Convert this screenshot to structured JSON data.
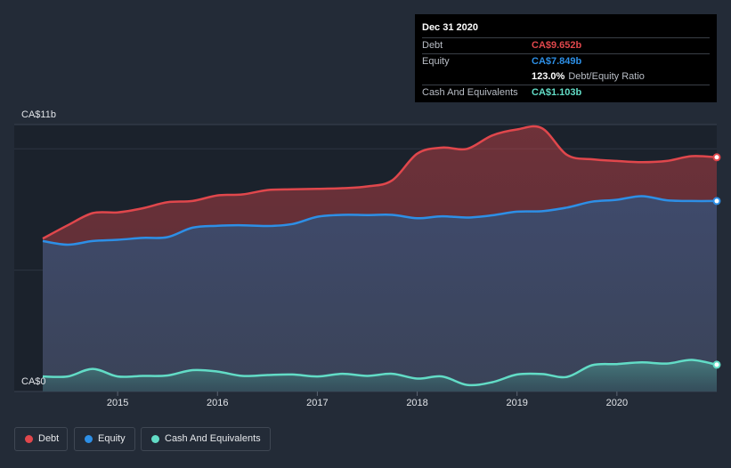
{
  "tooltip": {
    "date": "Dec 31 2020",
    "rows": [
      {
        "label": "Debt",
        "value": "CA$9.652b"
      },
      {
        "label": "Equity",
        "value": "CA$7.849b"
      },
      {
        "label": "",
        "value": "123.0%",
        "suffix": "Debt/Equity Ratio"
      },
      {
        "label": "Cash And Equivalents",
        "value": "CA$1.103b"
      }
    ]
  },
  "colors": {
    "debt": "#e0474c",
    "equity": "#2d8fe6",
    "cash": "#62dcc6",
    "background": "#232b37"
  },
  "legend": [
    {
      "label": "Debt",
      "color": "#e0474c"
    },
    {
      "label": "Equity",
      "color": "#2d8fe6"
    },
    {
      "label": "Cash And Equivalents",
      "color": "#62dcc6"
    }
  ],
  "chart_data": {
    "type": "area",
    "title": "",
    "xlabel": "",
    "ylabel": "",
    "y_top_label": "CA$11b",
    "y_bottom_label": "CA$0",
    "ylim": [
      0,
      11
    ],
    "xlim": [
      2014.25,
      2021.0
    ],
    "x_ticks": [
      2015,
      2016,
      2017,
      2018,
      2019,
      2020
    ],
    "x_tick_labels": [
      "2015",
      "2016",
      "2017",
      "2018",
      "2019",
      "2020"
    ],
    "series": [
      {
        "name": "Debt",
        "points": [
          [
            2014.25,
            6.3
          ],
          [
            2014.5,
            6.85
          ],
          [
            2014.75,
            7.35
          ],
          [
            2015.0,
            7.38
          ],
          [
            2015.25,
            7.55
          ],
          [
            2015.5,
            7.8
          ],
          [
            2015.75,
            7.85
          ],
          [
            2016.0,
            8.08
          ],
          [
            2016.25,
            8.12
          ],
          [
            2016.5,
            8.3
          ],
          [
            2016.75,
            8.33
          ],
          [
            2017.0,
            8.35
          ],
          [
            2017.25,
            8.38
          ],
          [
            2017.5,
            8.45
          ],
          [
            2017.75,
            8.7
          ],
          [
            2018.0,
            9.8
          ],
          [
            2018.25,
            10.05
          ],
          [
            2018.5,
            10.0
          ],
          [
            2018.75,
            10.55
          ],
          [
            2019.0,
            10.8
          ],
          [
            2019.25,
            10.85
          ],
          [
            2019.5,
            9.75
          ],
          [
            2019.75,
            9.57
          ],
          [
            2020.0,
            9.5
          ],
          [
            2020.25,
            9.45
          ],
          [
            2020.5,
            9.5
          ],
          [
            2020.75,
            9.7
          ],
          [
            2021.0,
            9.652
          ]
        ]
      },
      {
        "name": "Equity",
        "points": [
          [
            2014.25,
            6.2
          ],
          [
            2014.5,
            6.05
          ],
          [
            2014.75,
            6.2
          ],
          [
            2015.0,
            6.25
          ],
          [
            2015.25,
            6.33
          ],
          [
            2015.5,
            6.36
          ],
          [
            2015.75,
            6.75
          ],
          [
            2016.0,
            6.83
          ],
          [
            2016.25,
            6.85
          ],
          [
            2016.5,
            6.82
          ],
          [
            2016.75,
            6.9
          ],
          [
            2017.0,
            7.2
          ],
          [
            2017.25,
            7.28
          ],
          [
            2017.5,
            7.27
          ],
          [
            2017.75,
            7.28
          ],
          [
            2018.0,
            7.14
          ],
          [
            2018.25,
            7.22
          ],
          [
            2018.5,
            7.17
          ],
          [
            2018.75,
            7.26
          ],
          [
            2019.0,
            7.41
          ],
          [
            2019.25,
            7.43
          ],
          [
            2019.5,
            7.58
          ],
          [
            2019.75,
            7.82
          ],
          [
            2020.0,
            7.9
          ],
          [
            2020.25,
            8.05
          ],
          [
            2020.5,
            7.88
          ],
          [
            2020.75,
            7.85
          ],
          [
            2021.0,
            7.849
          ]
        ]
      },
      {
        "name": "Cash And Equivalents",
        "points": [
          [
            2014.25,
            0.62
          ],
          [
            2014.5,
            0.62
          ],
          [
            2014.75,
            0.93
          ],
          [
            2015.0,
            0.62
          ],
          [
            2015.25,
            0.64
          ],
          [
            2015.5,
            0.66
          ],
          [
            2015.75,
            0.88
          ],
          [
            2016.0,
            0.82
          ],
          [
            2016.25,
            0.64
          ],
          [
            2016.5,
            0.68
          ],
          [
            2016.75,
            0.7
          ],
          [
            2017.0,
            0.62
          ],
          [
            2017.25,
            0.73
          ],
          [
            2017.5,
            0.64
          ],
          [
            2017.75,
            0.73
          ],
          [
            2018.0,
            0.53
          ],
          [
            2018.25,
            0.62
          ],
          [
            2018.5,
            0.27
          ],
          [
            2018.75,
            0.38
          ],
          [
            2019.0,
            0.7
          ],
          [
            2019.25,
            0.72
          ],
          [
            2019.5,
            0.6
          ],
          [
            2019.75,
            1.08
          ],
          [
            2020.0,
            1.13
          ],
          [
            2020.25,
            1.2
          ],
          [
            2020.5,
            1.15
          ],
          [
            2020.75,
            1.3
          ],
          [
            2021.0,
            1.103
          ]
        ]
      }
    ]
  }
}
